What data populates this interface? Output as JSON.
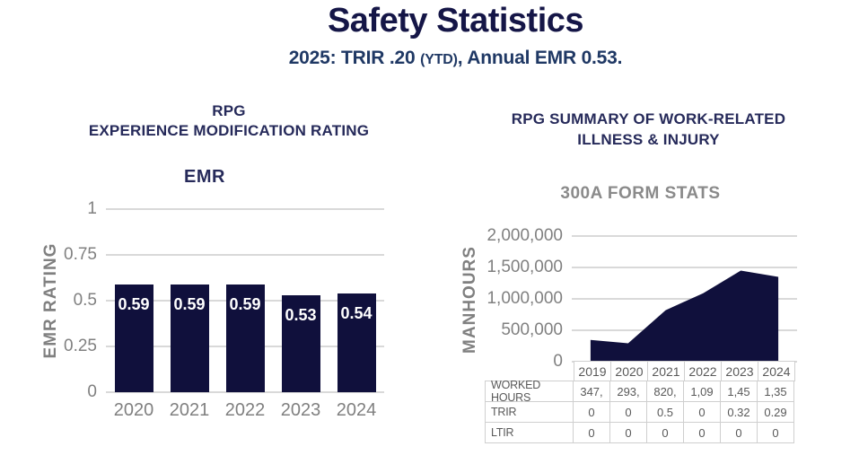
{
  "page": {
    "title": "Safety Statistics",
    "subtitle_before": "2025: TRIR .20 ",
    "subtitle_ytd": "(YTD)",
    "subtitle_after": ", Annual EMR 0.53."
  },
  "colors": {
    "navy_fill": "#10103c",
    "title_navy": "#151647",
    "header_navy": "#262a5a",
    "subtitle_blue": "#1f3864",
    "axis_gray": "#808080",
    "table_gray": "#595959",
    "gridline_gray": "#d9d9d9",
    "table_border": "#cfcfcf"
  },
  "emr_panel": {
    "title_line1": "RPG",
    "title_line2": "EXPERIENCE MODIFICATION RATING",
    "chart_title": "EMR",
    "y_axis_label": "EMR RATING"
  },
  "injury_panel": {
    "title_line1": "RPG SUMMARY OF WORK-RELATED",
    "title_line2": "ILLNESS & INJURY",
    "chart_title": "300A FORM STATS",
    "y_axis_label": "MANHOURS"
  },
  "chart_data": [
    {
      "type": "bar",
      "title": "EMR",
      "ylabel": "EMR RATING",
      "categories": [
        "2020",
        "2021",
        "2022",
        "2023",
        "2024"
      ],
      "values": [
        0.59,
        0.59,
        0.59,
        0.53,
        0.54
      ],
      "data_labels": [
        "0.59",
        "0.59",
        "0.59",
        "0.53",
        "0.54"
      ],
      "ylim": [
        0,
        1
      ],
      "yticks": [
        0,
        0.25,
        0.5,
        0.75,
        1
      ],
      "ytick_labels": [
        "0",
        "0.25",
        "0.5",
        "0.75",
        "1"
      ],
      "grid": true,
      "legend": "none",
      "bar_color": "#10103c",
      "label_color": "#ffffff"
    },
    {
      "type": "area",
      "title": "300A FORM STATS",
      "ylabel": "MANHOURS",
      "categories": [
        "2019",
        "2020",
        "2021",
        "2022",
        "2023",
        "2024"
      ],
      "values": [
        347000,
        293000,
        820000,
        1090000,
        1450000,
        1350000
      ],
      "ylim": [
        0,
        2000000
      ],
      "yticks": [
        0,
        500000,
        1000000,
        1500000,
        2000000
      ],
      "ytick_labels": [
        "0",
        "500,000",
        "1,000,000",
        "1,500,000",
        "2,000,000"
      ],
      "grid": true,
      "legend": "none",
      "fill_color": "#10103c",
      "table": {
        "columns": [
          "2019",
          "2020",
          "2021",
          "2022",
          "2023",
          "2024"
        ],
        "row_headers": [
          "WORKED HOURS",
          "TRIR",
          "LTIR"
        ],
        "rows": [
          [
            "347,",
            "293,",
            "820,",
            "1,09",
            "1,45",
            "1,35"
          ],
          [
            "0",
            "0",
            "0.5",
            "0",
            "0.32",
            "0.29"
          ],
          [
            "0",
            "0",
            "0",
            "0",
            "0",
            "0"
          ]
        ]
      }
    }
  ]
}
